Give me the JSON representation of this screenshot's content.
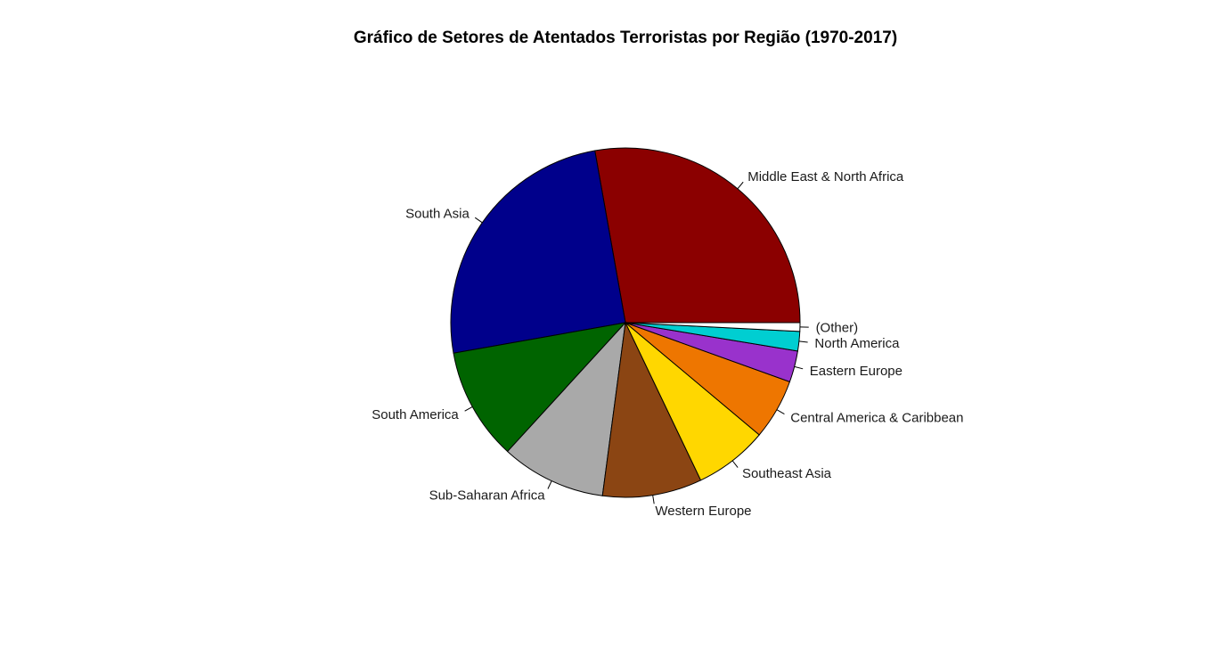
{
  "chart_data": {
    "type": "pie",
    "title": "Gráfico de Setores de Atentados Terroristas por Região (1970-2017)",
    "categories": [
      "Middle East & North Africa",
      "South Asia",
      "South America",
      "Sub-Saharan Africa",
      "Western Europe",
      "Southeast Asia",
      "Central America & Caribbean",
      "Eastern Europe",
      "North America",
      "(Other)"
    ],
    "values": [
      27.8,
      25.0,
      10.4,
      9.7,
      9.2,
      6.8,
      5.6,
      2.9,
      1.8,
      0.8
    ],
    "colors": [
      "#8B0000",
      "#00008B",
      "#006400",
      "#A9A9A9",
      "#8B4513",
      "#FFD700",
      "#EE7600",
      "#9932CC",
      "#00CED1",
      "#FFFFFF"
    ],
    "direction": "counterclockwise",
    "start_angle_deg": 0,
    "legend": "none"
  }
}
